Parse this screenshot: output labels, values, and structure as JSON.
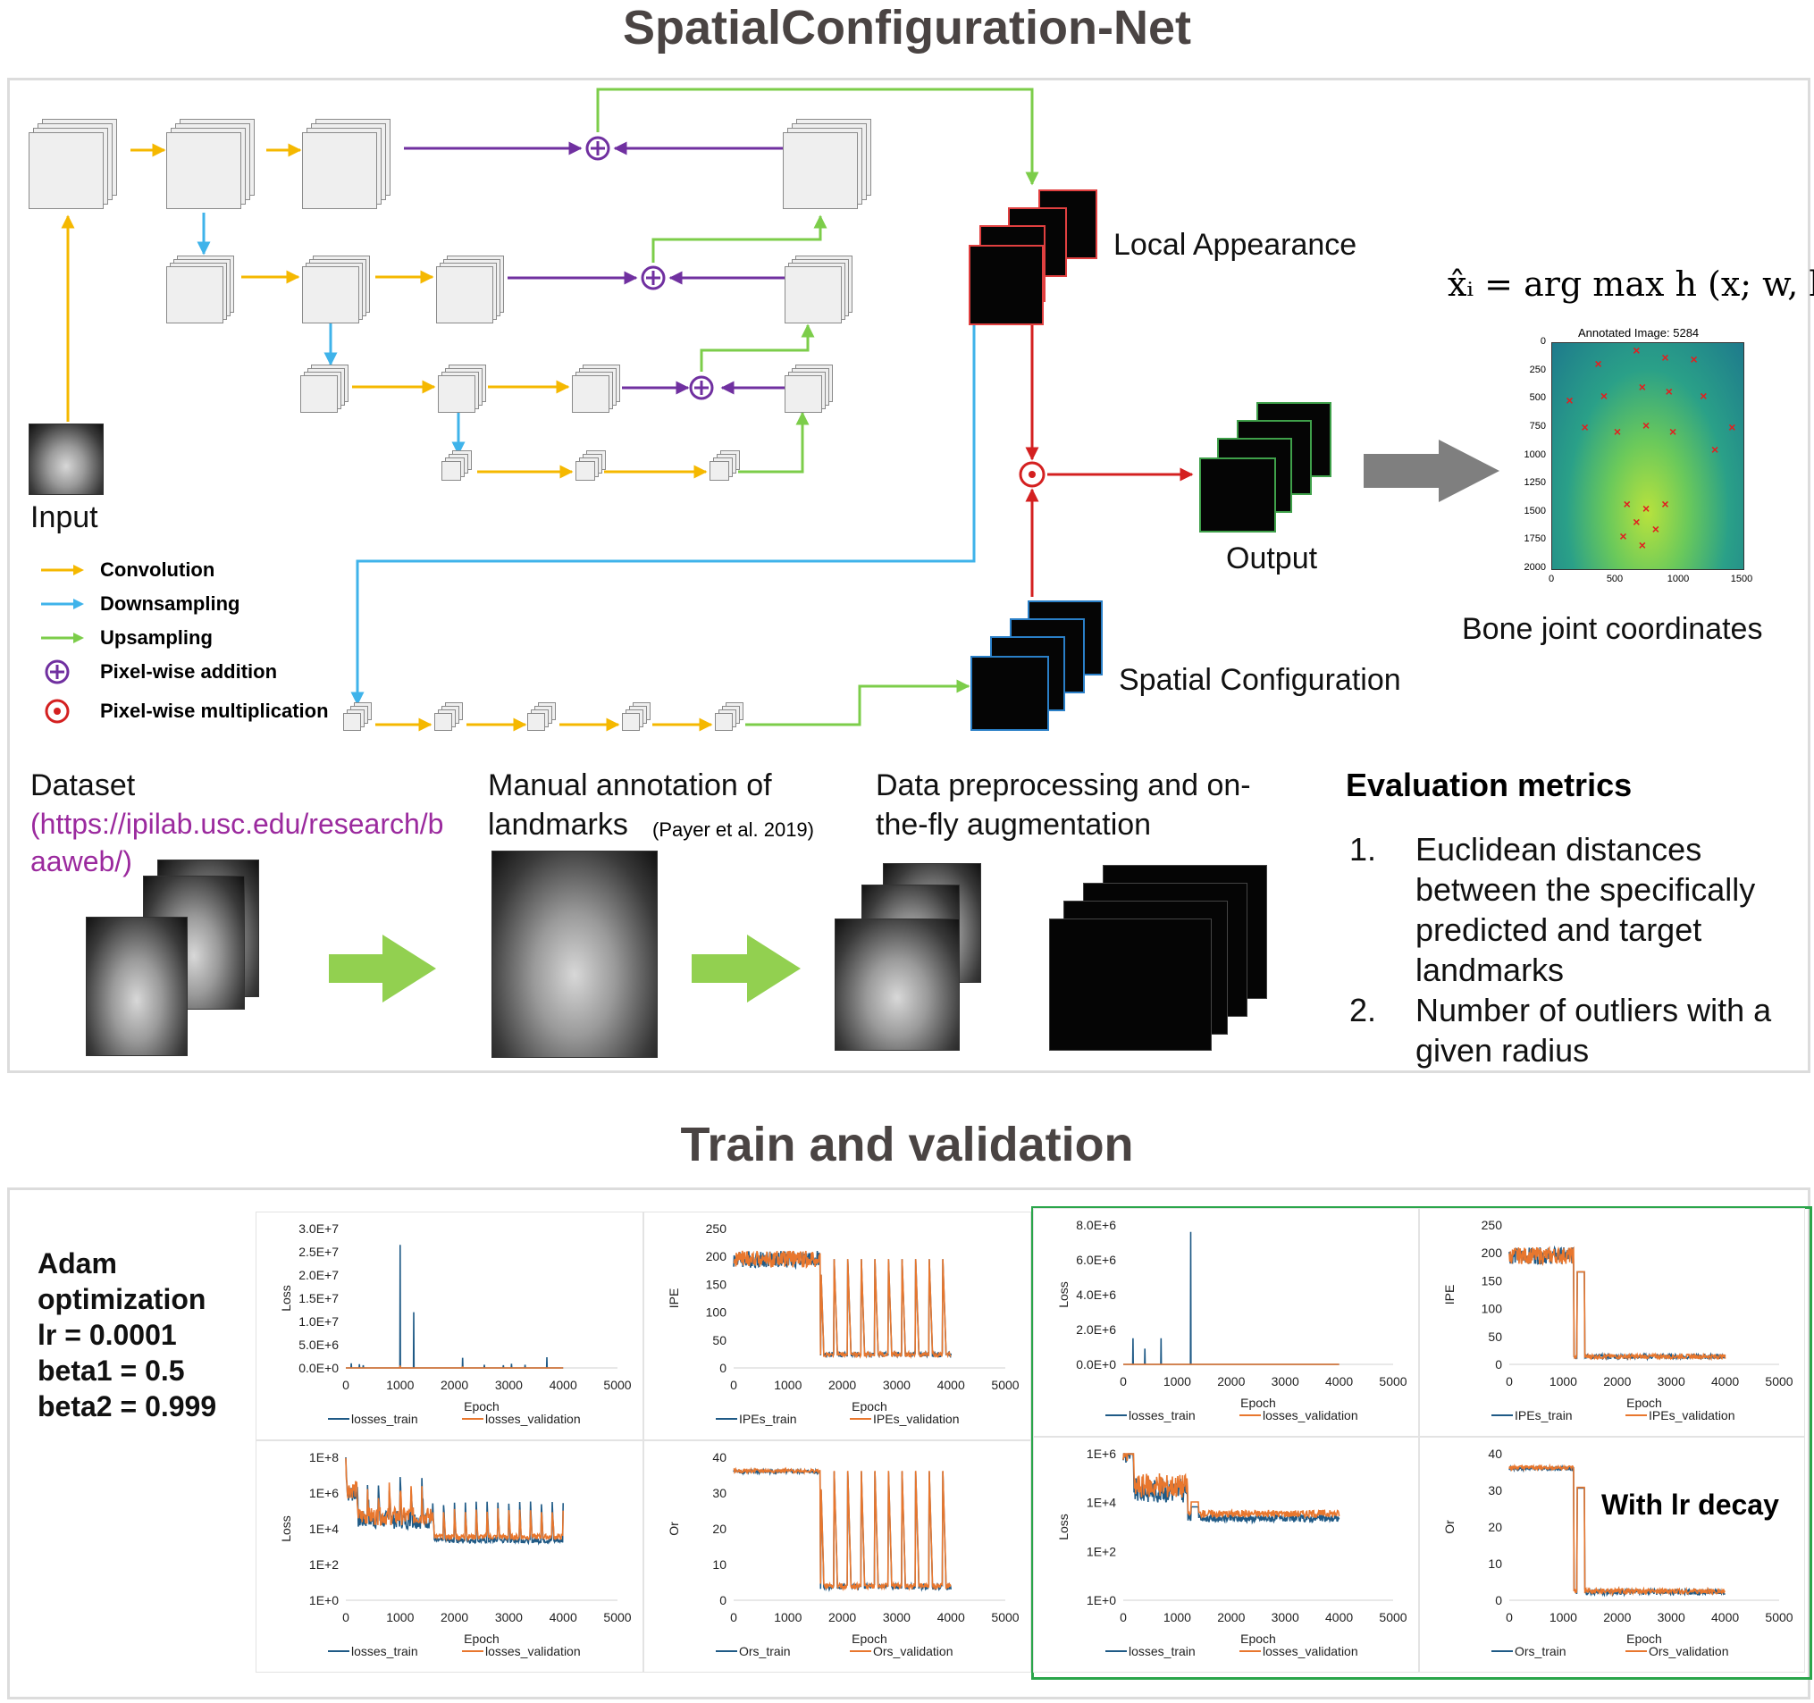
{
  "top": {
    "title": "SpatialConfiguration-Net",
    "input_label": "Input",
    "local_appearance_label": "Local Appearance",
    "spatial_configuration_label": "Spatial Configuration",
    "output_label": "Output",
    "formula": "x̂ᵢ = arg max h (x; w, b)",
    "formula_sub_i": "i",
    "formula_sub_x": "x",
    "annot_title": "Annotated Image: 5284",
    "annot_y_ticks": [
      "0",
      "250",
      "500",
      "750",
      "1000",
      "1250",
      "1500",
      "1750",
      "2000"
    ],
    "annot_x_ticks": [
      "0",
      "500",
      "1000",
      "1500"
    ],
    "bone_label": "Bone joint coordinates",
    "legend": [
      {
        "label": "Convolution",
        "color": "#f5b800",
        "kind": "arrow"
      },
      {
        "label": "Downsampling",
        "color": "#3fb3ea",
        "kind": "arrow"
      },
      {
        "label": "Upsampling",
        "color": "#7ccd4a",
        "kind": "arrow"
      },
      {
        "label": "Pixel-wise addition",
        "color": "#7030a0",
        "kind": "plus"
      },
      {
        "label": "Pixel-wise multiplication",
        "color": "#d42020",
        "kind": "dot"
      }
    ],
    "dataset_label": "Dataset",
    "dataset_url_line1": "(https://ipilab.usc.edu/research/b",
    "dataset_url_line2": "aaweb/)",
    "manual_line1": "Manual annotation of",
    "manual_line2": "landmarks",
    "manual_cite": "(Payer et al. 2019)",
    "prep_line1": "Data preprocessing and on-",
    "prep_line2": "the-fly augmentation",
    "eval_title": "Evaluation metrics",
    "eval_items": [
      {
        "num": "1.",
        "lines": [
          "Euclidean distances",
          "between the  specifically",
          "predicted and target",
          "landmarks"
        ]
      },
      {
        "num": "2.",
        "lines": [
          "Number of outliers with a",
          "given radius"
        ]
      }
    ],
    "colors": {
      "convolution": "#f5b800",
      "downsampling": "#3fb3ea",
      "upsampling": "#7ccd4a",
      "addition": "#7030a0",
      "multiplication": "#d42020",
      "url": "#9b2a9e",
      "title": "#4a4443"
    }
  },
  "bottom": {
    "title": "Train and validation",
    "adam_lines": [
      "Adam",
      "optimization",
      "lr = 0.0001",
      "beta1 = 0.5",
      "beta2 = 0.999"
    ],
    "lr_decay_label": "With lr decay"
  },
  "chart_data": [
    {
      "type": "line",
      "xlabel": "Epoch",
      "ylabel": "Loss",
      "x_ticks": [
        "0",
        "1000",
        "2000",
        "3000",
        "4000",
        "5000"
      ],
      "xlim": [
        0,
        5000
      ],
      "y_ticks": [
        "0.0E+0",
        "5.0E+6",
        "1.0E+7",
        "1.5E+7",
        "2.0E+7",
        "2.5E+7",
        "3.0E+7"
      ],
      "ylim": [
        0,
        30000000
      ],
      "series": [
        {
          "name": "losses_train",
          "color": "#1f5a86",
          "spikes": [
            [
              100,
              1000000
            ],
            [
              250,
              800000
            ],
            [
              320,
              600000
            ],
            [
              1000,
              26500000
            ],
            [
              1250,
              12000000
            ],
            [
              2150,
              2200000
            ],
            [
              2550,
              700000
            ],
            [
              2900,
              600000
            ],
            [
              3050,
              900000
            ],
            [
              3300,
              700000
            ],
            [
              3700,
              2300000
            ]
          ]
        },
        {
          "name": "losses_validation",
          "color": "#e8772e",
          "spikes": [
            [
              1000,
              500000
            ],
            [
              2150,
              300000
            ]
          ]
        }
      ]
    },
    {
      "type": "line",
      "xlabel": "Epoch",
      "ylabel": "IPE",
      "x_ticks": [
        "0",
        "1000",
        "2000",
        "3000",
        "4000",
        "5000"
      ],
      "xlim": [
        0,
        5000
      ],
      "y_ticks": [
        "0",
        "50",
        "100",
        "150",
        "200",
        "250"
      ],
      "ylim": [
        0,
        250
      ],
      "series": [
        {
          "name": "IPEs_train",
          "color": "#1f5a86"
        },
        {
          "name": "IPEs_validation",
          "color": "#e8772e"
        }
      ]
    },
    {
      "type": "line",
      "xlabel": "Epoch",
      "ylabel": "Loss",
      "x_ticks": [
        "0",
        "1000",
        "2000",
        "3000",
        "4000",
        "5000"
      ],
      "xlim": [
        0,
        5000
      ],
      "y_ticks": [
        "0.0E+0",
        "2.0E+6",
        "4.0E+6",
        "6.0E+6",
        "8.0E+6"
      ],
      "ylim": [
        0,
        8000000
      ],
      "series": [
        {
          "name": "losses_train",
          "color": "#1f5a86",
          "spikes": [
            [
              180,
              1500000
            ],
            [
              400,
              900000
            ],
            [
              700,
              1500000
            ],
            [
              1250,
              7600000
            ]
          ]
        },
        {
          "name": "losses_validation",
          "color": "#e8772e",
          "spikes": []
        }
      ]
    },
    {
      "type": "line",
      "xlabel": "Epoch",
      "ylabel": "IPE",
      "x_ticks": [
        "0",
        "1000",
        "2000",
        "3000",
        "4000",
        "5000"
      ],
      "xlim": [
        0,
        5000
      ],
      "y_ticks": [
        "0",
        "50",
        "100",
        "150",
        "200",
        "250"
      ],
      "ylim": [
        0,
        250
      ],
      "series": [
        {
          "name": "IPEs_train",
          "color": "#1f5a86"
        },
        {
          "name": "IPEs_validation",
          "color": "#e8772e"
        }
      ]
    },
    {
      "type": "line",
      "xlabel": "Epoch",
      "ylabel": "Loss",
      "x_ticks": [
        "0",
        "1000",
        "2000",
        "3000",
        "4000",
        "5000"
      ],
      "xlim": [
        0,
        5000
      ],
      "y_ticks": [
        "1E+0",
        "1E+2",
        "1E+4",
        "1E+6",
        "1E+8"
      ],
      "ylim": [
        0,
        8
      ],
      "log_scale": true,
      "series": [
        {
          "name": "losses_train",
          "color": "#1f5a86"
        },
        {
          "name": "losses_validation",
          "color": "#e8772e"
        }
      ]
    },
    {
      "type": "line",
      "xlabel": "Epoch",
      "ylabel": "Or",
      "x_ticks": [
        "0",
        "1000",
        "2000",
        "3000",
        "4000",
        "5000"
      ],
      "xlim": [
        0,
        5000
      ],
      "y_ticks": [
        "0",
        "10",
        "20",
        "30",
        "40"
      ],
      "ylim": [
        0,
        40
      ],
      "series": [
        {
          "name": "Ors_train",
          "color": "#1f5a86"
        },
        {
          "name": "Ors_validation",
          "color": "#e8772e"
        }
      ]
    },
    {
      "type": "line",
      "xlabel": "Epoch",
      "ylabel": "Loss",
      "x_ticks": [
        "0",
        "1000",
        "2000",
        "3000",
        "4000",
        "5000"
      ],
      "xlim": [
        0,
        5000
      ],
      "y_ticks": [
        "1E+0",
        "1E+2",
        "1E+4",
        "1E+6"
      ],
      "ylim": [
        0,
        6
      ],
      "log_scale": true,
      "series": [
        {
          "name": "losses_train",
          "color": "#1f5a86"
        },
        {
          "name": "losses_validation",
          "color": "#e8772e"
        }
      ]
    },
    {
      "type": "line",
      "xlabel": "Epoch",
      "ylabel": "Or",
      "x_ticks": [
        "0",
        "1000",
        "2000",
        "3000",
        "4000",
        "5000"
      ],
      "xlim": [
        0,
        5000
      ],
      "y_ticks": [
        "0",
        "10",
        "20",
        "30",
        "40"
      ],
      "ylim": [
        0,
        40
      ],
      "series": [
        {
          "name": "Ors_train",
          "color": "#1f5a86"
        },
        {
          "name": "Ors_validation",
          "color": "#e8772e"
        }
      ]
    }
  ]
}
